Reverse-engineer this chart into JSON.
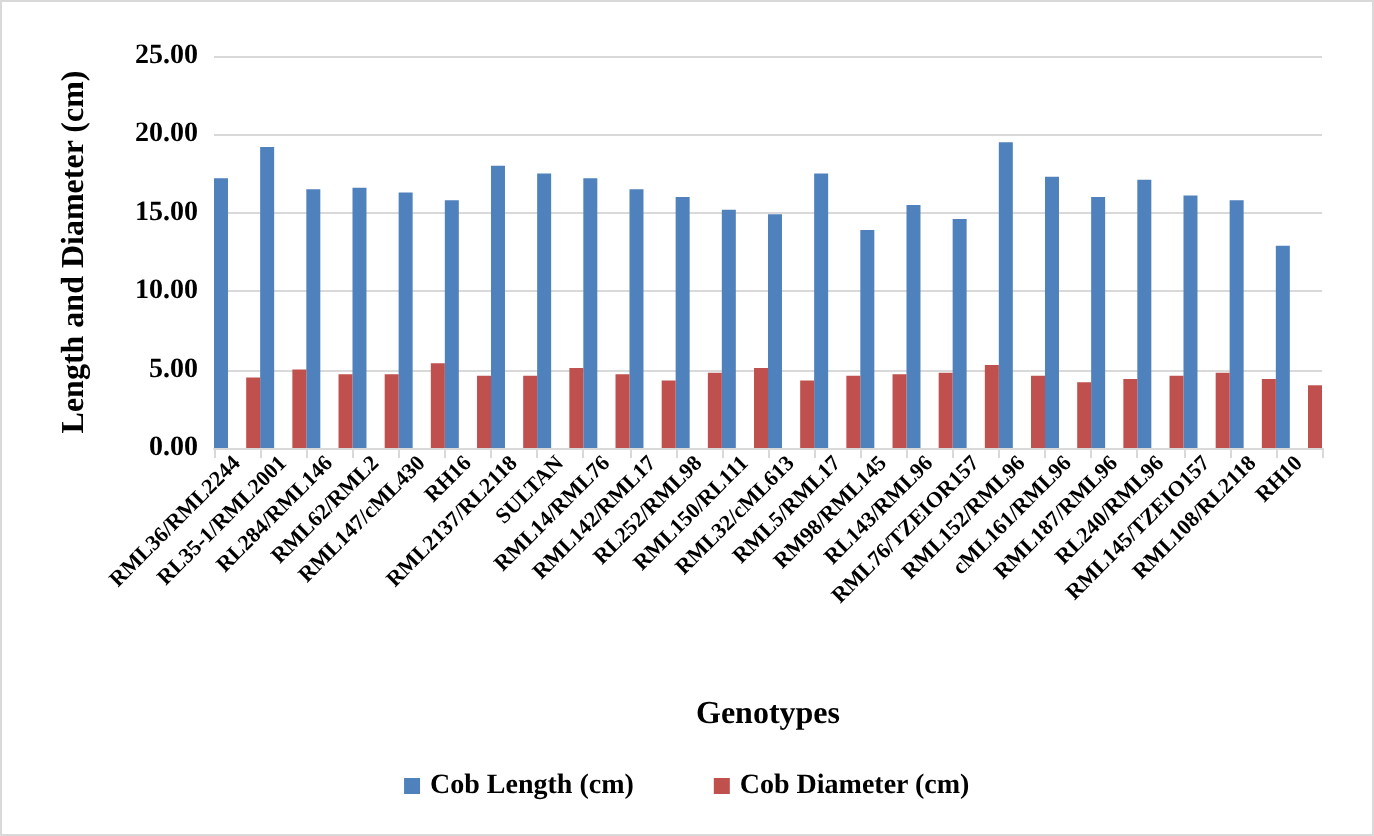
{
  "chart_data": {
    "type": "bar",
    "xlabel": "Genotypes",
    "ylabel": "Length and Diameter (cm)",
    "categories": [
      "RML36/RML2244",
      "RL35-1/RML2001",
      "RL284/RML146",
      "RML62/RML2",
      "RML147/cML430",
      "RH16",
      "RML2137/RL2118",
      "SULTAN",
      "RML14/RML76",
      "RML142/RML17",
      "RL252/RML98",
      "RML150/RL111",
      "RML32/cML613",
      "RML5/RML17",
      "RM98/RML145",
      "RL143/RML96",
      "RML76/TZEIOR157",
      "RML152/RML96",
      "cML161/RML96",
      "RML187/RML96",
      "RL240/RML96",
      "RML145/TZEIO157",
      "RML108/RL2118",
      "RH10"
    ],
    "series": [
      {
        "name": "Cob Length (cm)",
        "color": "#4f81bd",
        "values": [
          17.2,
          19.2,
          16.5,
          16.6,
          16.3,
          15.8,
          18.0,
          17.5,
          17.2,
          16.5,
          16.0,
          15.2,
          14.9,
          17.5,
          13.9,
          15.5,
          14.6,
          19.5,
          17.3,
          16.0,
          17.1,
          16.1,
          15.8,
          12.9
        ]
      },
      {
        "name": "Cob Diameter (cm)",
        "color": "#c0504d",
        "values": [
          4.5,
          5.0,
          4.7,
          4.7,
          5.4,
          4.6,
          4.6,
          5.1,
          4.7,
          4.3,
          4.8,
          5.1,
          4.3,
          4.6,
          4.7,
          4.8,
          5.3,
          4.6,
          4.2,
          4.4,
          4.6,
          4.8,
          4.4,
          4.0
        ]
      }
    ],
    "ylim": [
      0,
      25
    ],
    "yticks": [
      {
        "value": 0,
        "label": "0.00"
      },
      {
        "value": 5,
        "label": "5.00"
      },
      {
        "value": 10,
        "label": "10.00"
      },
      {
        "value": 15,
        "label": "15.00"
      },
      {
        "value": 20,
        "label": "20.00"
      },
      {
        "value": 25,
        "label": "25.00"
      }
    ],
    "grid": "y",
    "legend": "bottom"
  }
}
